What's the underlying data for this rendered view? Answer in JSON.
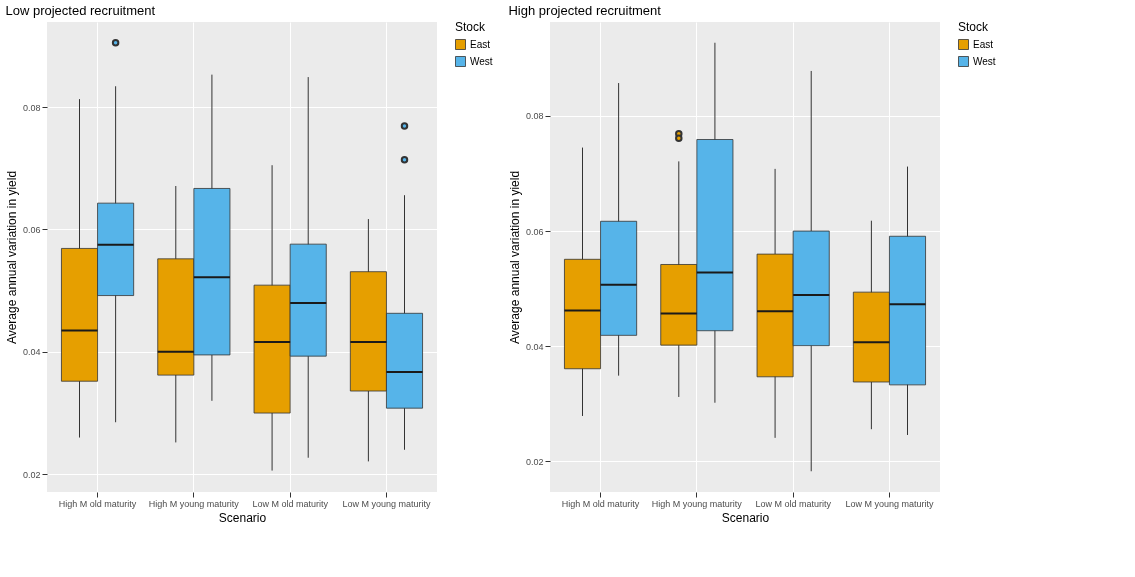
{
  "chart_data": [
    {
      "type": "box",
      "title": "Low projected recruitment",
      "xlabel": "Scenario",
      "ylabel": "Average annual variation in yield",
      "legend_title": "Stock",
      "legend": "right",
      "grid": true,
      "categories": [
        "High M old maturity",
        "High M young maturity",
        "Low M old maturity",
        "Low M young maturity"
      ],
      "ylim": [
        0.0171,
        0.0939
      ],
      "yticks": [
        0.02,
        0.04,
        0.06,
        0.08
      ],
      "series": [
        {
          "name": "East",
          "color": "#e69f00",
          "boxes": [
            {
              "low": 0.026,
              "q1": 0.0352,
              "median": 0.0435,
              "q3": 0.0569,
              "high": 0.0813
            },
            {
              "low": 0.0252,
              "q1": 0.0362,
              "median": 0.04,
              "q3": 0.0552,
              "high": 0.0671
            },
            {
              "low": 0.0206,
              "q1": 0.03,
              "median": 0.0416,
              "q3": 0.0509,
              "high": 0.0705
            },
            {
              "low": 0.0221,
              "q1": 0.0336,
              "median": 0.0416,
              "q3": 0.0531,
              "high": 0.0617
            }
          ]
        },
        {
          "name": "West",
          "color": "#56b4e9",
          "boxes": [
            {
              "low": 0.0285,
              "q1": 0.0492,
              "median": 0.0575,
              "q3": 0.0643,
              "high": 0.0834,
              "outliers": [
                0.0905
              ]
            },
            {
              "low": 0.032,
              "q1": 0.0395,
              "median": 0.0522,
              "q3": 0.0667,
              "high": 0.0853
            },
            {
              "low": 0.0227,
              "q1": 0.0393,
              "median": 0.048,
              "q3": 0.0576,
              "high": 0.0849
            },
            {
              "low": 0.024,
              "q1": 0.0308,
              "median": 0.0367,
              "q3": 0.0463,
              "high": 0.0656,
              "outliers": [
                0.0769,
                0.0714
              ]
            }
          ]
        }
      ]
    },
    {
      "type": "box",
      "title": "High projected recruitment",
      "xlabel": "Scenario",
      "ylabel": "Average annual variation in yield",
      "legend_title": "Stock",
      "legend": "right",
      "grid": true,
      "categories": [
        "High M old maturity",
        "High M young maturity",
        "Low M old maturity",
        "Low M young maturity"
      ],
      "ylim": [
        0.0147,
        0.0963
      ],
      "yticks": [
        0.02,
        0.04,
        0.06,
        0.08
      ],
      "series": [
        {
          "name": "East",
          "color": "#e69f00",
          "boxes": [
            {
              "low": 0.0279,
              "q1": 0.0361,
              "median": 0.0462,
              "q3": 0.0551,
              "high": 0.0745
            },
            {
              "low": 0.0312,
              "q1": 0.0402,
              "median": 0.0457,
              "q3": 0.0542,
              "high": 0.0721,
              "outliers": [
                0.0769,
                0.0761
              ]
            },
            {
              "low": 0.0241,
              "q1": 0.0347,
              "median": 0.0461,
              "q3": 0.056,
              "high": 0.0708
            },
            {
              "low": 0.0256,
              "q1": 0.0338,
              "median": 0.0407,
              "q3": 0.0494,
              "high": 0.0618
            }
          ]
        },
        {
          "name": "West",
          "color": "#56b4e9",
          "boxes": [
            {
              "low": 0.0349,
              "q1": 0.0419,
              "median": 0.0507,
              "q3": 0.0617,
              "high": 0.0857
            },
            {
              "low": 0.0302,
              "q1": 0.0427,
              "median": 0.0528,
              "q3": 0.0759,
              "high": 0.0927
            },
            {
              "low": 0.0183,
              "q1": 0.0401,
              "median": 0.0489,
              "q3": 0.06,
              "high": 0.0878
            },
            {
              "low": 0.0246,
              "q1": 0.0333,
              "median": 0.0473,
              "q3": 0.0591,
              "high": 0.0712
            }
          ]
        }
      ]
    }
  ]
}
